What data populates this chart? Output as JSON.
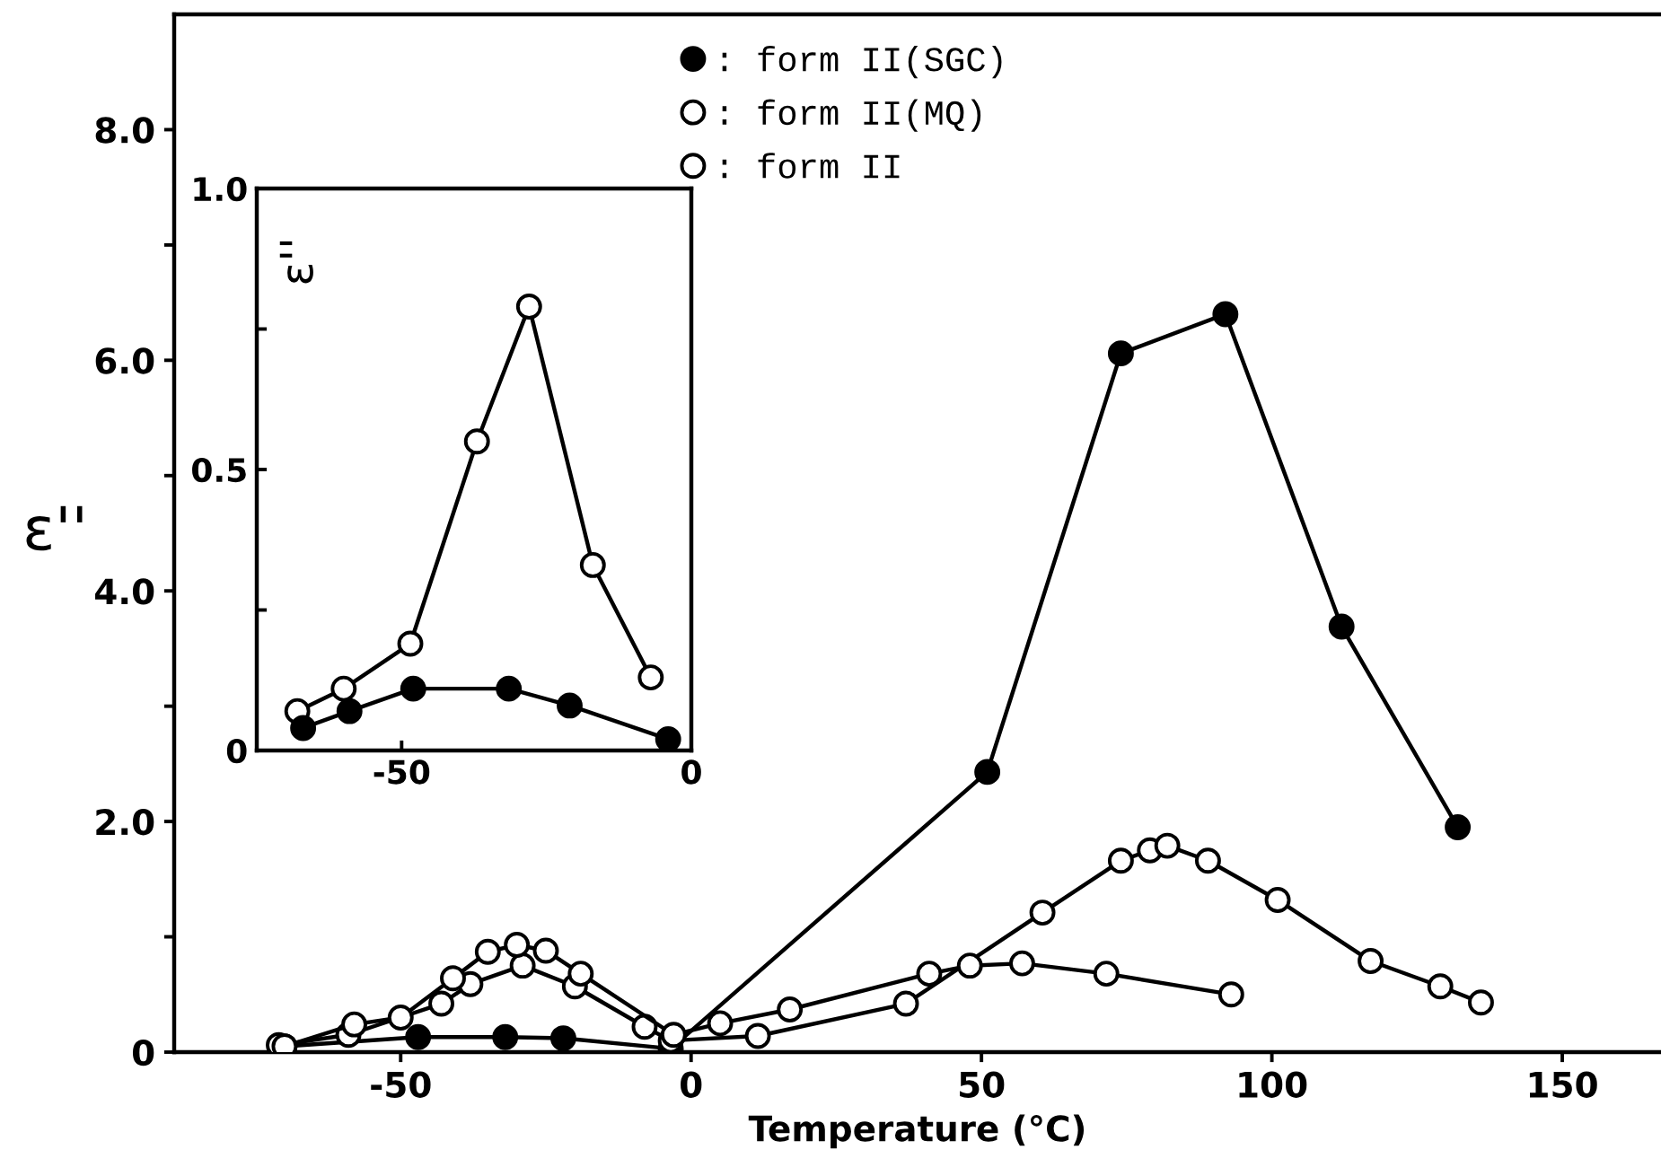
{
  "chart_data": [
    {
      "type": "line",
      "xlabel": "Temperature (°C)",
      "ylabel": "ε''",
      "xlim": [
        -89,
        167
      ],
      "ylim": [
        0,
        9.0
      ],
      "xticks": [
        -50,
        0,
        50,
        100,
        150
      ],
      "yticks": [
        {
          "value": 0,
          "label": "0"
        },
        {
          "value": 1,
          "label": null
        },
        {
          "value": 2,
          "label": "2.0"
        },
        {
          "value": 3,
          "label": null
        },
        {
          "value": 4,
          "label": "4.0"
        },
        {
          "value": 5,
          "label": null
        },
        {
          "value": 6,
          "label": "6.0"
        },
        {
          "value": 7,
          "label": null
        },
        {
          "value": 8,
          "label": "8.0"
        }
      ],
      "legend": "top",
      "grid": false,
      "series": [
        {
          "name": ": form II(SGC)",
          "color": "#000000",
          "marker": "circle",
          "x": [
            -70,
            -47,
            -32,
            -22,
            -3.5,
            51,
            74,
            92,
            112,
            132
          ],
          "values": [
            0.05,
            0.13,
            0.13,
            0.12,
            0.03,
            2.43,
            6.06,
            6.4,
            3.69,
            1.95
          ]
        },
        {
          "name": ": form II(MQ)",
          "color": "#ffffff",
          "marker": "circle",
          "x": [
            -71,
            -59,
            -43,
            -38,
            -29,
            -20,
            -8,
            -3.5,
            11.5,
            37,
            60.5,
            74,
            79,
            82,
            89,
            101,
            117,
            129,
            136
          ],
          "values": [
            0.06,
            0.15,
            0.42,
            0.59,
            0.75,
            0.57,
            0.22,
            0.1,
            0.14,
            0.42,
            1.21,
            1.66,
            1.75,
            1.79,
            1.66,
            1.32,
            0.79,
            0.57,
            0.43
          ]
        },
        {
          "name": ": form II",
          "color": "#ffffff",
          "marker": "circle",
          "x": [
            -70,
            -58,
            -50,
            -41,
            -35,
            -30,
            -25,
            -19,
            -3,
            5,
            17,
            41,
            48,
            57,
            71.5,
            93
          ],
          "values": [
            0.05,
            0.24,
            0.3,
            0.64,
            0.87,
            0.93,
            0.88,
            0.68,
            0.15,
            0.25,
            0.37,
            0.68,
            0.75,
            0.77,
            0.68,
            0.5
          ]
        }
      ]
    },
    {
      "type": "line",
      "ylabel": "ε''",
      "xlim": [
        -75,
        0
      ],
      "ylim": [
        0,
        1.0
      ],
      "xticks": [
        -50,
        {
          "value": 0,
          "label": "0"
        }
      ],
      "yticks": [
        {
          "value": 0,
          "label": "0"
        },
        {
          "value": 0.25,
          "label": null
        },
        {
          "value": 0.5,
          "label": "0.5"
        },
        {
          "value": 0.75,
          "label": null
        },
        {
          "value": 1.0,
          "label": "1.0"
        }
      ],
      "series": [
        {
          "color": "#ffffff",
          "marker": "circle",
          "x": [
            -68,
            -60,
            -48.5,
            -37,
            -28,
            -17,
            -7
          ],
          "values": [
            0.07,
            0.11,
            0.19,
            0.55,
            0.79,
            0.33,
            0.13
          ]
        },
        {
          "color": "#000000",
          "marker": "circle",
          "x": [
            -67,
            -59,
            -48,
            -31.5,
            -21,
            -4
          ],
          "values": [
            0.04,
            0.07,
            0.11,
            0.11,
            0.08,
            0.02
          ]
        }
      ]
    }
  ]
}
